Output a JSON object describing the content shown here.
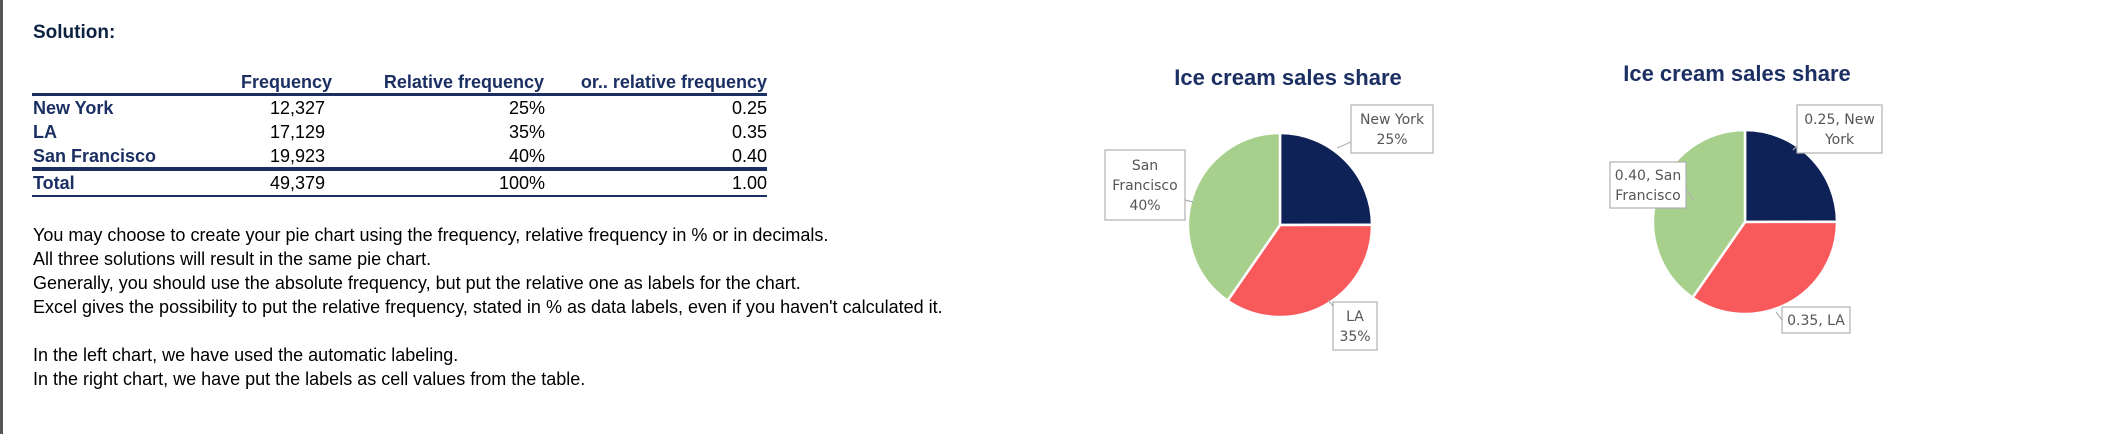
{
  "solution_label": "Solution:",
  "table": {
    "headers": [
      "",
      "Frequency",
      "Relative frequency",
      "or.. relative frequency"
    ],
    "rows": [
      [
        "New York",
        "12,327",
        "25%",
        "0.25"
      ],
      [
        "LA",
        "17,129",
        "35%",
        "0.35"
      ],
      [
        "San Francisco",
        "19,923",
        "40%",
        "0.40"
      ]
    ],
    "total": [
      "Total",
      "49,379",
      "100%",
      "1.00"
    ]
  },
  "notes": [
    "You may choose to create your pie chart using the frequency, relative frequency in % or in decimals.",
    "All three solutions will result in the same pie chart.",
    "Generally, you should use the absolute frequency, but put the relative one as labels for the chart.",
    "Excel gives the possibility to put the relative frequency, stated in % as data labels, even if you haven't calculated it.",
    "",
    "In the left chart, we have used the automatic labeling.",
    "In the right chart, we have put the labels as cell values from the table."
  ],
  "colors": {
    "New York": "#0f2257",
    "LA": "#f85a5c",
    "San Francisco": "#a8d08d"
  },
  "chart_data": [
    {
      "type": "pie",
      "title": "Ice cream sales share",
      "categories": [
        "New York",
        "LA",
        "San Francisco"
      ],
      "values": [
        12327,
        17129,
        19923
      ],
      "data_labels": [
        [
          "New York",
          "25%"
        ],
        [
          "LA",
          "35%"
        ],
        [
          "San",
          "Francisco",
          "40%"
        ]
      ]
    },
    {
      "type": "pie",
      "title": "Ice cream sales share",
      "categories": [
        "New York",
        "LA",
        "San Francisco"
      ],
      "values": [
        12327,
        17129,
        19923
      ],
      "data_labels": [
        [
          "0.25, New",
          "York"
        ],
        [
          "0.35, LA"
        ],
        [
          "0.40, San",
          "Francisco"
        ]
      ]
    }
  ]
}
